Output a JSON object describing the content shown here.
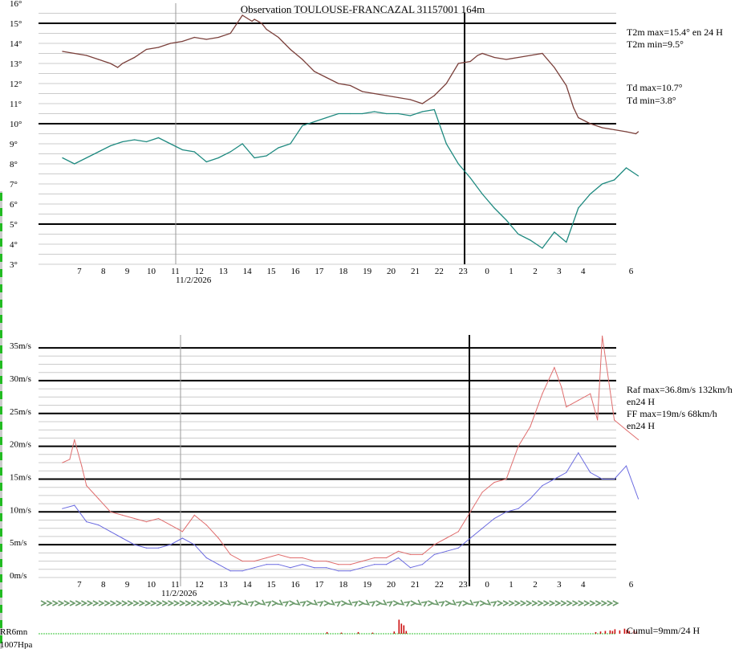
{
  "header": {
    "title": "Observation TOULOUSE-FRANCAZAL 31157001 164m"
  },
  "colors": {
    "temperature": "#7a3f3a",
    "dewpoint": "#1f8a80",
    "gust": "#e06e6e",
    "wind": "#6a6ae0",
    "rain": "#cc1111",
    "now_line": "#000000",
    "date_line": "#999999",
    "strong_grid": "#000000",
    "light_grid": "#cccccc",
    "wind_arrows": "#6a9a6a",
    "left_edge_bars": "#22bb22"
  },
  "temp_panel": {
    "y_ticks": [
      "3°",
      "4°",
      "5°",
      "6°",
      "7°",
      "8°",
      "9°",
      "10°",
      "11°",
      "12°",
      "13°",
      "14°",
      "15°",
      "16°"
    ],
    "hour_labels": [
      "7",
      "8",
      "9",
      "10",
      "11",
      "12",
      "13",
      "14",
      "15",
      "16",
      "17",
      "18",
      "19",
      "20",
      "21",
      "22",
      "23",
      "0",
      "1",
      "2",
      "3",
      "4",
      "6"
    ],
    "date_label": "11/2/2026",
    "stats": {
      "t_max": "T2m max=15.4° en 24 H",
      "t_min": "T2m min=9.5°",
      "td_max": "Td max=10.7°",
      "td_min": "Td min=3.8°"
    }
  },
  "wind_panel": {
    "y_ticks": [
      "0m/s",
      "5m/s",
      "10m/s",
      "15m/s",
      "20m/s",
      "25m/s",
      "30m/s",
      "35m/s"
    ],
    "hour_labels": [
      "7",
      "8",
      "9",
      "10",
      "11",
      "12",
      "13",
      "14",
      "15",
      "16",
      "17",
      "18",
      "19",
      "20",
      "21",
      "22",
      "23",
      "0",
      "1",
      "2",
      "3",
      "4",
      "6"
    ],
    "date_label": "11/2/2026",
    "stats": {
      "raf_max": "Raf max=36.8m/s 132km/h",
      "raf_period": "en24 H",
      "ff_max": "FF max=19m/s 68km/h",
      "ff_period": "en24 H"
    }
  },
  "rain_panel": {
    "label": "RR6mn",
    "cumul": "Cumul=9mm/24 H",
    "pressure_label": "1007Hpa"
  },
  "chart_data": [
    {
      "type": "line",
      "title": "Observation TOULOUSE-FRANCAZAL 31157001 164m",
      "xlabel": "",
      "ylabel": "",
      "x_unit": "hours since 06:30 (11/2/2026)",
      "ylim": [
        3,
        16
      ],
      "grid": true,
      "series": [
        {
          "name": "T2m",
          "x": [
            0,
            0.5,
            1,
            1.5,
            2,
            2.3,
            2.5,
            3,
            3.5,
            4,
            4.5,
            5,
            5.5,
            6,
            6.5,
            7,
            7.5,
            7.9,
            8,
            8.3,
            8.5,
            9,
            9.5,
            10,
            10.5,
            11,
            11.5,
            12,
            12.5,
            13,
            13.5,
            14,
            14.5,
            15,
            15.5,
            16,
            16.5,
            17,
            17.3,
            17.5,
            18,
            18.5,
            19,
            19.5,
            20,
            20.5,
            21,
            21.3,
            21.5,
            22,
            22.5,
            23,
            23.5,
            23.9,
            24
          ],
          "y": [
            13.6,
            13.5,
            13.4,
            13.2,
            13.0,
            12.8,
            13.0,
            13.3,
            13.7,
            13.8,
            14.0,
            14.1,
            14.3,
            14.2,
            14.3,
            14.5,
            15.4,
            15.1,
            15.2,
            15.0,
            14.7,
            14.3,
            13.7,
            13.2,
            12.6,
            12.3,
            12.0,
            11.9,
            11.6,
            11.5,
            11.4,
            11.3,
            11.2,
            11.0,
            11.4,
            12.0,
            13.0,
            13.1,
            13.4,
            13.5,
            13.3,
            13.2,
            13.3,
            13.4,
            13.5,
            12.8,
            11.9,
            10.8,
            10.3,
            10.0,
            9.8,
            9.7,
            9.6,
            9.5,
            9.6
          ]
        },
        {
          "name": "Td",
          "x": [
            0,
            0.5,
            1,
            1.5,
            2,
            2.5,
            3,
            3.5,
            4,
            4.5,
            5,
            5.5,
            6,
            6.5,
            7,
            7.5,
            8,
            8.5,
            9,
            9.5,
            10,
            10.5,
            11,
            11.5,
            12,
            12.5,
            13,
            13.5,
            14,
            14.5,
            15,
            15.5,
            16,
            16.5,
            17,
            17.5,
            18,
            18.5,
            19,
            19.5,
            20,
            20.5,
            21,
            21.5,
            22,
            22.5,
            23,
            23.5,
            24
          ],
          "y": [
            8.3,
            8.0,
            8.3,
            8.6,
            8.9,
            9.1,
            9.2,
            9.1,
            9.3,
            9.0,
            8.7,
            8.6,
            8.1,
            8.3,
            8.6,
            9.0,
            8.3,
            8.4,
            8.8,
            9.0,
            9.9,
            10.1,
            10.3,
            10.5,
            10.5,
            10.5,
            10.6,
            10.5,
            10.5,
            10.4,
            10.6,
            10.7,
            9.0,
            8.0,
            7.3,
            6.5,
            5.8,
            5.2,
            4.5,
            4.2,
            3.8,
            4.6,
            4.1,
            5.8,
            6.5,
            7.0,
            7.2,
            7.8,
            7.4
          ]
        }
      ]
    },
    {
      "type": "line",
      "title": "",
      "xlabel": "",
      "ylabel": "",
      "x_unit": "hours since 06:30 (11/2/2026)",
      "ylim": [
        0,
        36.8
      ],
      "grid": true,
      "series": [
        {
          "name": "Raf",
          "x": [
            0,
            0.3,
            0.5,
            0.8,
            1,
            1.5,
            2,
            2.5,
            3,
            3.5,
            4,
            4.5,
            5,
            5.5,
            6,
            6.5,
            7,
            7.5,
            8,
            8.5,
            9,
            9.5,
            10,
            10.5,
            11,
            11.5,
            12,
            12.5,
            13,
            13.5,
            14,
            14.5,
            15,
            15.5,
            16,
            16.5,
            17,
            17.5,
            18,
            18.5,
            19,
            19.5,
            20,
            20.5,
            20.8,
            21,
            21.5,
            22,
            22.3,
            22.5,
            23,
            23.5,
            24
          ],
          "y": [
            17.5,
            18,
            21,
            17,
            14,
            12,
            10,
            9.5,
            9,
            8.5,
            9,
            8,
            7,
            9.5,
            8,
            6,
            3.5,
            2.5,
            2.5,
            3,
            3.5,
            3,
            3,
            2.5,
            2.5,
            2,
            2,
            2.5,
            3,
            3,
            4,
            3.5,
            3.5,
            5,
            6,
            7,
            10,
            13,
            14.5,
            15,
            20,
            23,
            28,
            32,
            29,
            26,
            27,
            28,
            24,
            36.8,
            24,
            22.5,
            21
          ]
        },
        {
          "name": "FF",
          "x": [
            0,
            0.5,
            1,
            1.5,
            2,
            2.5,
            3,
            3.5,
            4,
            4.5,
            5,
            5.5,
            6,
            6.5,
            7,
            7.5,
            8,
            8.5,
            9,
            9.5,
            10,
            10.5,
            11,
            11.5,
            12,
            12.5,
            13,
            13.5,
            14,
            14.5,
            15,
            15.5,
            16,
            16.5,
            17,
            17.5,
            18,
            18.5,
            19,
            19.5,
            20,
            20.5,
            21,
            21.5,
            22,
            22.5,
            23,
            23.5,
            24
          ],
          "y": [
            10.5,
            11,
            8.5,
            8,
            7,
            6,
            5,
            4.5,
            4.5,
            5,
            6,
            5,
            3,
            2,
            1,
            1,
            1.5,
            2,
            2,
            1.5,
            2,
            1.5,
            1.5,
            1,
            1,
            1.5,
            2,
            2,
            3,
            1.5,
            2,
            3.5,
            4,
            4.5,
            6,
            7.5,
            9,
            10,
            10.5,
            12,
            14,
            15,
            16,
            19,
            16,
            15,
            15,
            17,
            12
          ]
        }
      ]
    },
    {
      "type": "bar",
      "title": "",
      "xlabel": "",
      "ylabel": "RR6mn",
      "x_unit": "hours since 06:30 (11/2/2026)",
      "grid": false,
      "x": [
        11.0,
        11.6,
        12.3,
        12.9,
        13.8,
        14.0,
        14.1,
        14.2,
        14.3,
        22.2,
        22.4,
        22.6,
        22.8,
        22.9,
        23.0,
        23.2,
        23.4,
        23.5,
        23.6,
        23.8,
        23.9
      ],
      "values": [
        0.3,
        0.2,
        0.3,
        0.2,
        0.4,
        2.5,
        1.8,
        1.5,
        0.5,
        0.3,
        0.4,
        0.5,
        0.6,
        0.5,
        0.8,
        0.6,
        0.9,
        0.7,
        0.5,
        0.6,
        0.4
      ]
    }
  ]
}
